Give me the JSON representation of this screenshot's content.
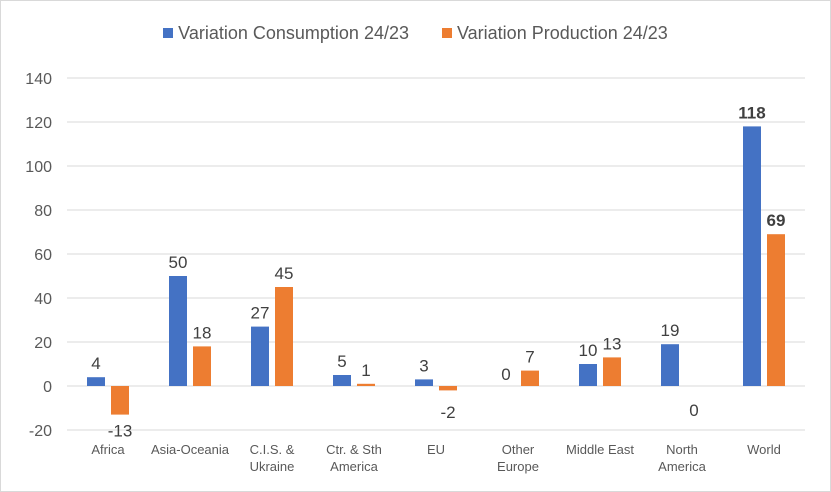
{
  "chart_data": {
    "type": "bar",
    "title": "",
    "xlabel": "",
    "ylabel": "",
    "ylim": [
      -20,
      140
    ],
    "yticks": [
      -20,
      0,
      20,
      40,
      60,
      80,
      100,
      120,
      140
    ],
    "grid": true,
    "legend_position": "top",
    "categories": [
      [
        "Africa"
      ],
      [
        "Asia-Oceania"
      ],
      [
        "C.I.S. &",
        "Ukraine"
      ],
      [
        "Ctr. & Sth",
        "America"
      ],
      [
        "EU"
      ],
      [
        "Other",
        "Europe"
      ],
      [
        "Middle East"
      ],
      [
        "North",
        "America"
      ],
      [
        "World"
      ]
    ],
    "series": [
      {
        "name": "Variation Consumption 24/23",
        "color": "#4472c4",
        "values": [
          4,
          50,
          27,
          5,
          3,
          0,
          10,
          19,
          118
        ],
        "labels": [
          "4",
          "50",
          "27",
          "5",
          "3",
          "0",
          "10",
          "19",
          "118"
        ]
      },
      {
        "name": "Variation Production 24/23",
        "color": "#ed7d31",
        "values": [
          -13,
          18,
          45,
          1,
          -2,
          7,
          13,
          0,
          69
        ],
        "labels": [
          "-13",
          "18",
          "45",
          "1",
          "-2",
          "7",
          "13",
          "0",
          "69"
        ]
      }
    ],
    "bold_label_categories": [
      "World"
    ]
  }
}
